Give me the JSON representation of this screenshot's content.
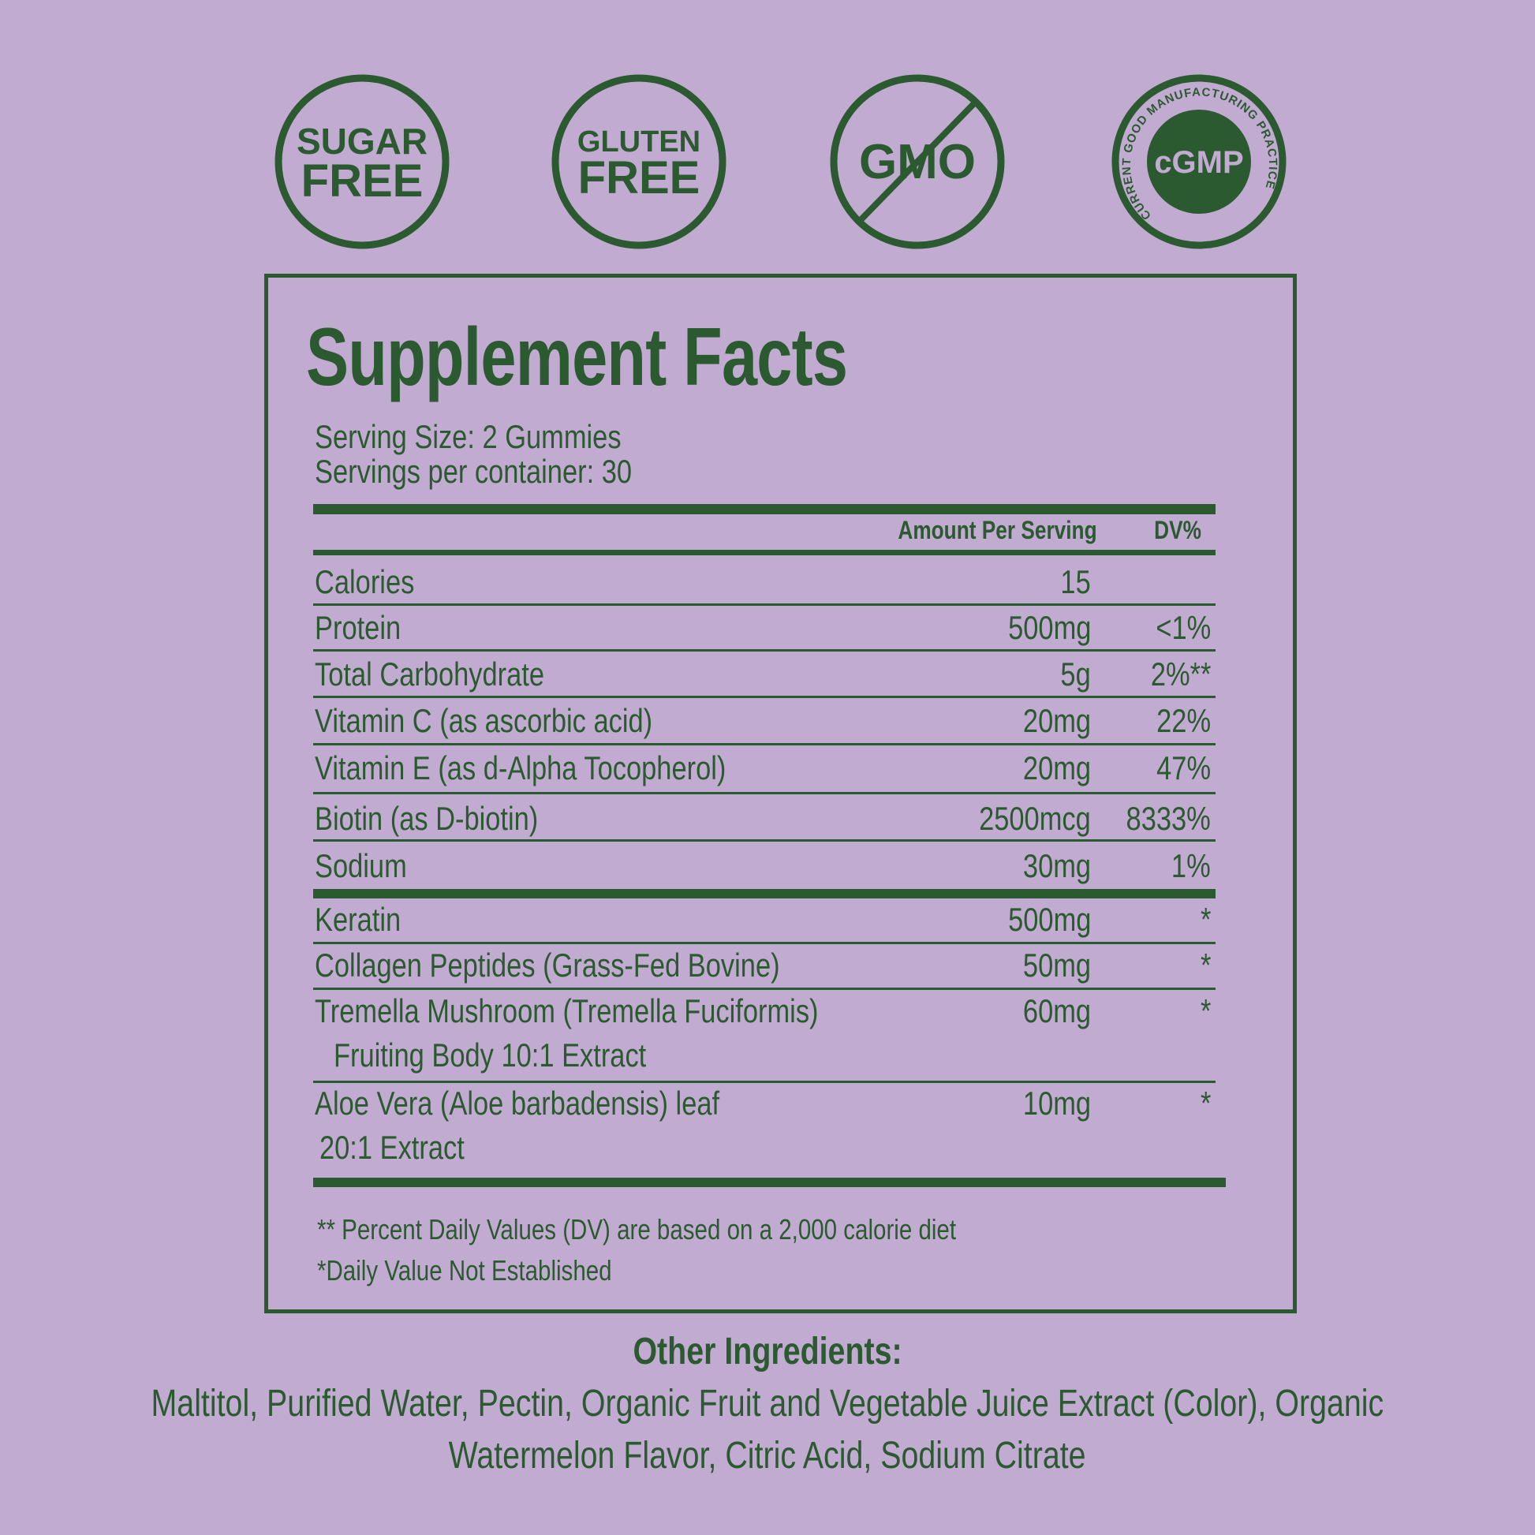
{
  "colors": {
    "background": "#c2abd0",
    "green": "#2b5a30"
  },
  "badges": [
    {
      "line1": "SUGAR",
      "line2": "FREE"
    },
    {
      "line1": "GLUTEN",
      "line2": "FREE"
    },
    {
      "text": "GMO",
      "icon": "no-gmo-slash-icon"
    },
    {
      "center": "cGMP",
      "ring": "CURRENT GOOD MANUFACTURING PRACTICE"
    }
  ],
  "facts": {
    "title": "Supplement Facts",
    "serving_size": "Serving Size: 2 Gummies",
    "servings_per_container": "Servings per container: 30",
    "header_amount": "Amount Per Serving",
    "header_dv": "DV%",
    "rows": [
      {
        "name": "Calories",
        "amount": "15",
        "dv": ""
      },
      {
        "name": "Protein",
        "amount": "500mg",
        "dv": "<1%"
      },
      {
        "name": "Total Carbohydrate",
        "amount": "5g",
        "dv": "2%**"
      },
      {
        "name": "Vitamin C (as ascorbic acid)",
        "amount": "20mg",
        "dv": "22%"
      },
      {
        "name": "Vitamin E (as d-Alpha Tocopherol)",
        "amount": "20mg",
        "dv": "47%"
      },
      {
        "name": "Biotin (as D-biotin)",
        "amount": "2500mcg",
        "dv": "8333%"
      },
      {
        "name": "Sodium",
        "amount": "30mg",
        "dv": "1%"
      }
    ],
    "other_rows": [
      {
        "name": "Keratin",
        "amount": "500mg",
        "dv": "*"
      },
      {
        "name": "Collagen Peptides (Grass-Fed Bovine)",
        "amount": "50mg",
        "dv": "*"
      },
      {
        "name": "Tremella Mushroom (Tremella Fuciformis)",
        "name2": "Fruiting Body 10:1 Extract",
        "amount": "60mg",
        "dv": "*"
      },
      {
        "name": "Aloe Vera (Aloe barbadensis) leaf",
        "name2": "20:1 Extract",
        "amount": "10mg",
        "dv": "*"
      }
    ],
    "footnote1": "** Percent Daily Values (DV) are based on a 2,000 calorie diet",
    "footnote2": "*Daily Value Not Established"
  },
  "other_ingredients": {
    "heading": "Other Ingredients:",
    "line1": "Maltitol, Purified Water, Pectin, Organic Fruit and Vegetable Juice Extract (Color), Organic",
    "line2": "Watermelon Flavor, Citric Acid, Sodium Citrate"
  }
}
